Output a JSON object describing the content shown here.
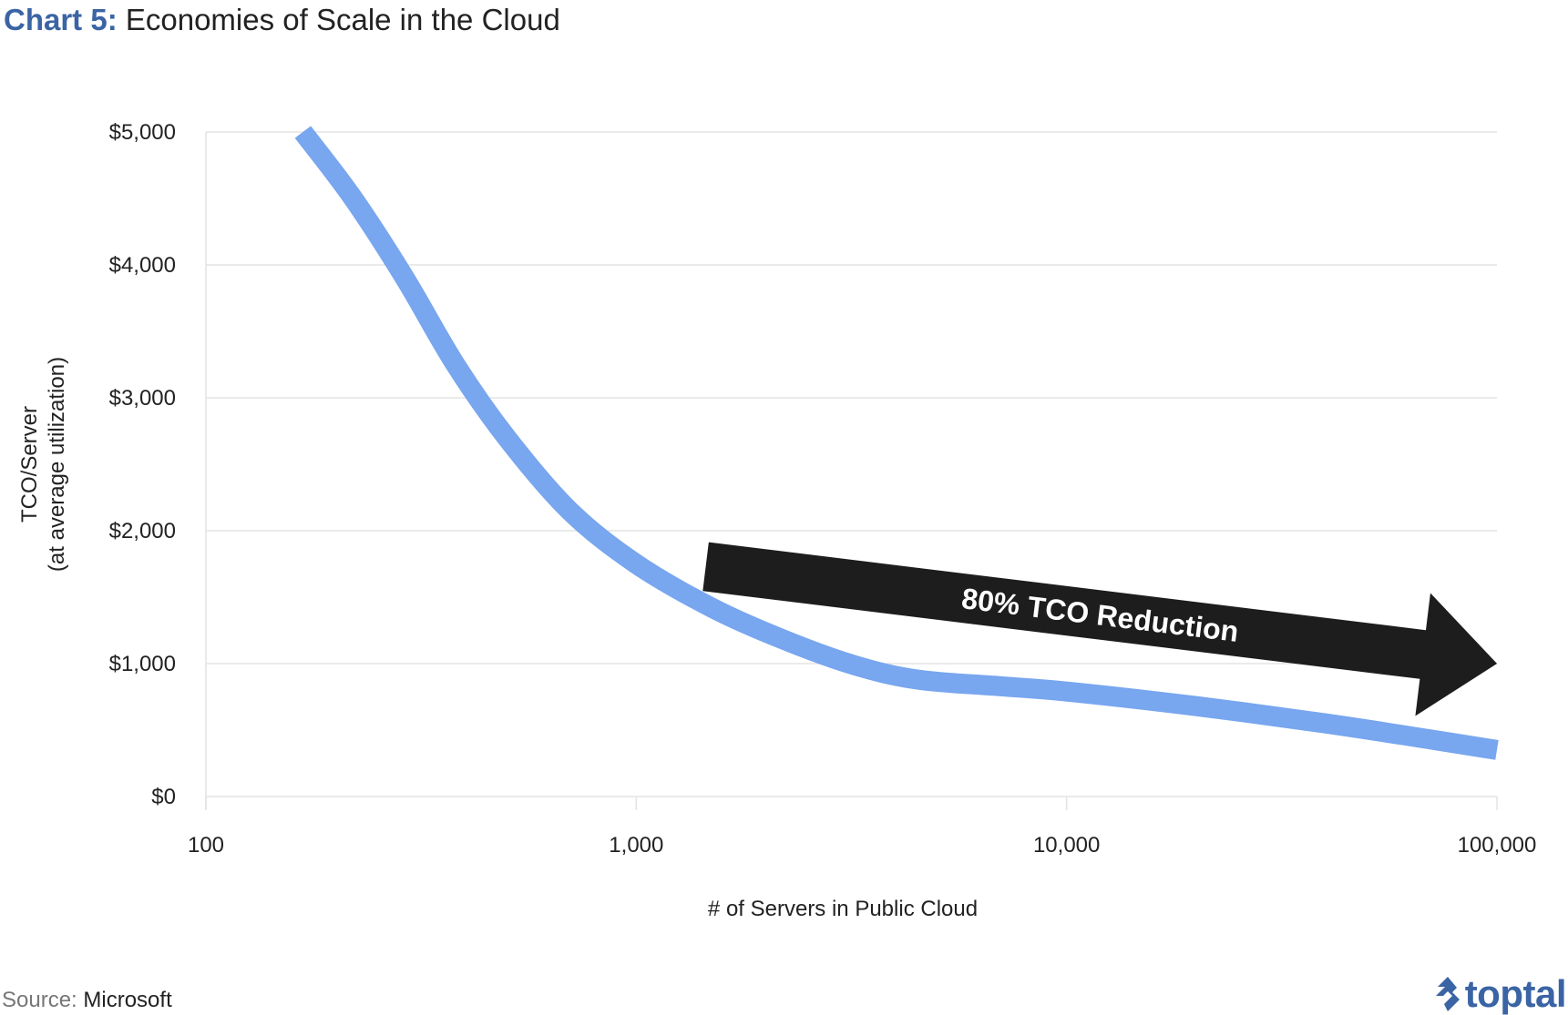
{
  "title": {
    "prefix": "Chart 5:",
    "main": "Economies of Scale in the Cloud"
  },
  "chart_data": {
    "type": "line",
    "xscale": "log",
    "xlim": [
      100,
      100000
    ],
    "ylim": [
      0,
      5000
    ],
    "x_ticks": [
      100,
      1000,
      10000,
      100000
    ],
    "x_tick_labels": [
      "100",
      "1,000",
      "10,000",
      "100,000"
    ],
    "y_ticks": [
      0,
      1000,
      2000,
      3000,
      4000,
      5000
    ],
    "y_tick_labels": [
      "$0",
      "$1,000",
      "$2,000",
      "$3,000",
      "$4,000",
      "$5,000"
    ],
    "xlabel": "# of Servers in Public Cloud",
    "ylabel_lines": [
      "TCO/Server",
      "(at average utilization)"
    ],
    "grid": "horizontal",
    "series": [
      {
        "color": "#78a6ef",
        "points": [
          [
            168,
            5000
          ],
          [
            220,
            4500
          ],
          [
            290,
            3900
          ],
          [
            380,
            3250
          ],
          [
            500,
            2700
          ],
          [
            700,
            2150
          ],
          [
            1000,
            1750
          ],
          [
            1500,
            1420
          ],
          [
            2200,
            1180
          ],
          [
            3200,
            990
          ],
          [
            4500,
            880
          ],
          [
            7000,
            830
          ],
          [
            10000,
            790
          ],
          [
            20000,
            680
          ],
          [
            40000,
            550
          ],
          [
            70000,
            430
          ],
          [
            100000,
            350
          ]
        ]
      }
    ],
    "annotation": {
      "text": "80% TCO Reduction",
      "color": "#1d1d1d",
      "text_color": "#ffffff",
      "from": [
        1450,
        1730
      ],
      "to": [
        100000,
        1000
      ]
    }
  },
  "source": {
    "label": "Source:",
    "value": "Microsoft"
  },
  "brand": {
    "name": "toptal",
    "icon": "toptal-logo-icon",
    "color": "#3a64a4"
  }
}
